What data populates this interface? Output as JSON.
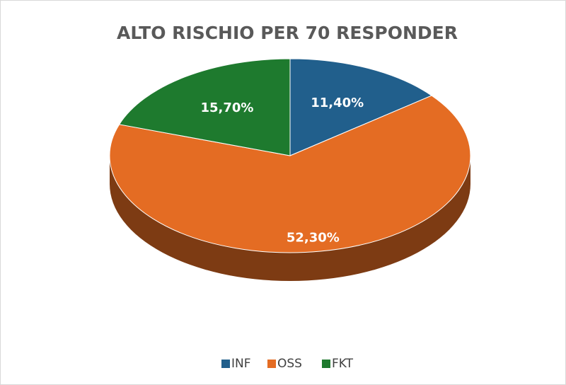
{
  "chart_data": {
    "type": "pie",
    "title": "ALTO RISCHIO PER 70 RESPONDER",
    "categories": [
      "INF",
      "OSS",
      "FKT"
    ],
    "values": [
      11.4,
      52.3,
      15.7
    ],
    "value_labels": [
      "11,40%",
      "52,30%",
      "15,70%"
    ],
    "colors": [
      "#215f8c",
      "#e46c23",
      "#1e7a2e"
    ],
    "legend": "bottom"
  }
}
